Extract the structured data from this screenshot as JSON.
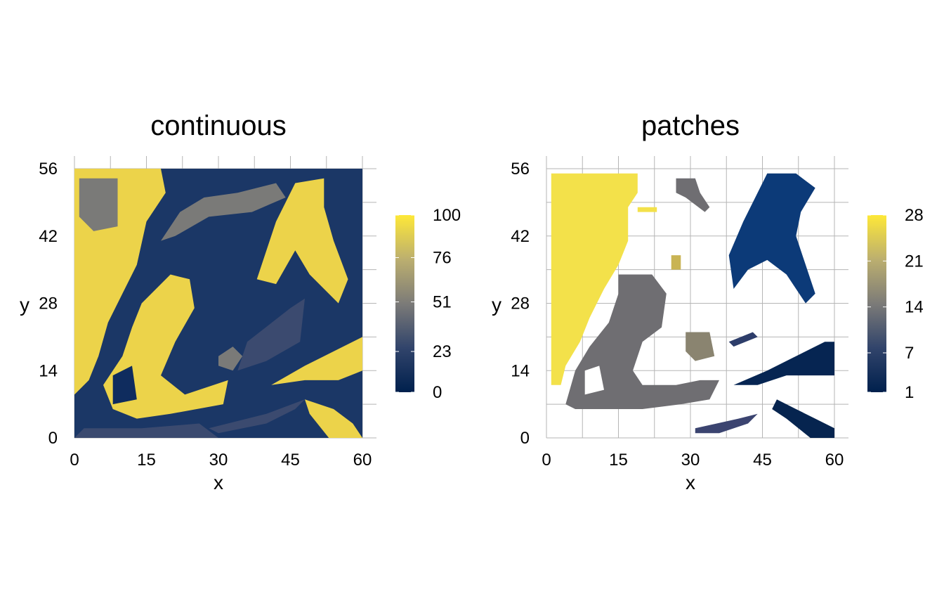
{
  "chart_data": [
    {
      "type": "heatmap",
      "title": "continuous",
      "xlabel": "x",
      "ylabel": "y",
      "xlim": [
        0,
        60
      ],
      "ylim": [
        0,
        56
      ],
      "xticks": [
        "0",
        "15",
        "30",
        "45",
        "60"
      ],
      "yticks": [
        "0",
        "14",
        "28",
        "42",
        "56"
      ],
      "grid": true,
      "legend": {
        "position": "right",
        "type": "colorbar",
        "ticks": [
          "100",
          "76",
          "51",
          "23",
          "0"
        ],
        "range": [
          0,
          100
        ]
      }
    },
    {
      "type": "heatmap",
      "title": "patches",
      "xlabel": "x",
      "ylabel": "y",
      "xlim": [
        0,
        60
      ],
      "ylim": [
        0,
        56
      ],
      "xticks": [
        "0",
        "15",
        "30",
        "45",
        "60"
      ],
      "yticks": [
        "0",
        "14",
        "28",
        "42",
        "56"
      ],
      "grid": true,
      "legend": {
        "position": "right",
        "type": "colorbar",
        "ticks": [
          "28",
          "21",
          "14",
          "7",
          "1"
        ],
        "range": [
          1,
          28
        ]
      }
    }
  ],
  "palette": {
    "low": "#00204d",
    "mid": "#7c7b78",
    "high": "#fee838",
    "grid": "#b5b5b5"
  }
}
